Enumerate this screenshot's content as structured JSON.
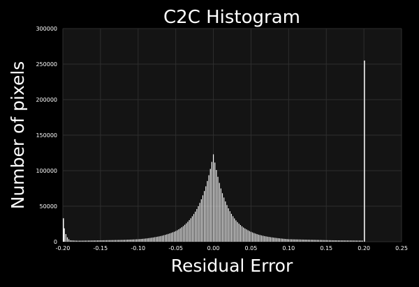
{
  "chart_data": {
    "type": "bar",
    "title": "C2C Histogram",
    "xlabel": "Residual Error",
    "ylabel": "Number of pixels",
    "xlim": [
      -0.2,
      0.25
    ],
    "ylim": [
      0,
      300000
    ],
    "xticks": [
      "-0.20",
      "-0.15",
      "-0.10",
      "-0.05",
      "0.00",
      "0.05",
      "0.10",
      "0.15",
      "0.20",
      "0.25"
    ],
    "yticks": [
      "0",
      "50000",
      "100000",
      "150000",
      "200000",
      "250000",
      "300000"
    ],
    "grid": true,
    "legend": "none",
    "bin_width": 0.002,
    "x": [
      -0.2,
      -0.19,
      -0.18,
      -0.16,
      -0.14,
      -0.12,
      -0.1,
      -0.09,
      -0.08,
      -0.07,
      -0.06,
      -0.05,
      -0.04,
      -0.03,
      -0.02,
      -0.01,
      0.0,
      0.01,
      0.02,
      0.03,
      0.04,
      0.05,
      0.06,
      0.07,
      0.08,
      0.09,
      0.1,
      0.12,
      0.14,
      0.16,
      0.18,
      0.199,
      0.2
    ],
    "values": [
      33000,
      2000,
      1500,
      1800,
      2200,
      2600,
      3500,
      4500,
      6000,
      8000,
      11000,
      15000,
      22000,
      33000,
      50000,
      78000,
      123000,
      75000,
      47000,
      30000,
      20000,
      14000,
      10000,
      7500,
      5800,
      4500,
      3500,
      3000,
      2500,
      2000,
      1800,
      1600,
      255000
    ]
  }
}
